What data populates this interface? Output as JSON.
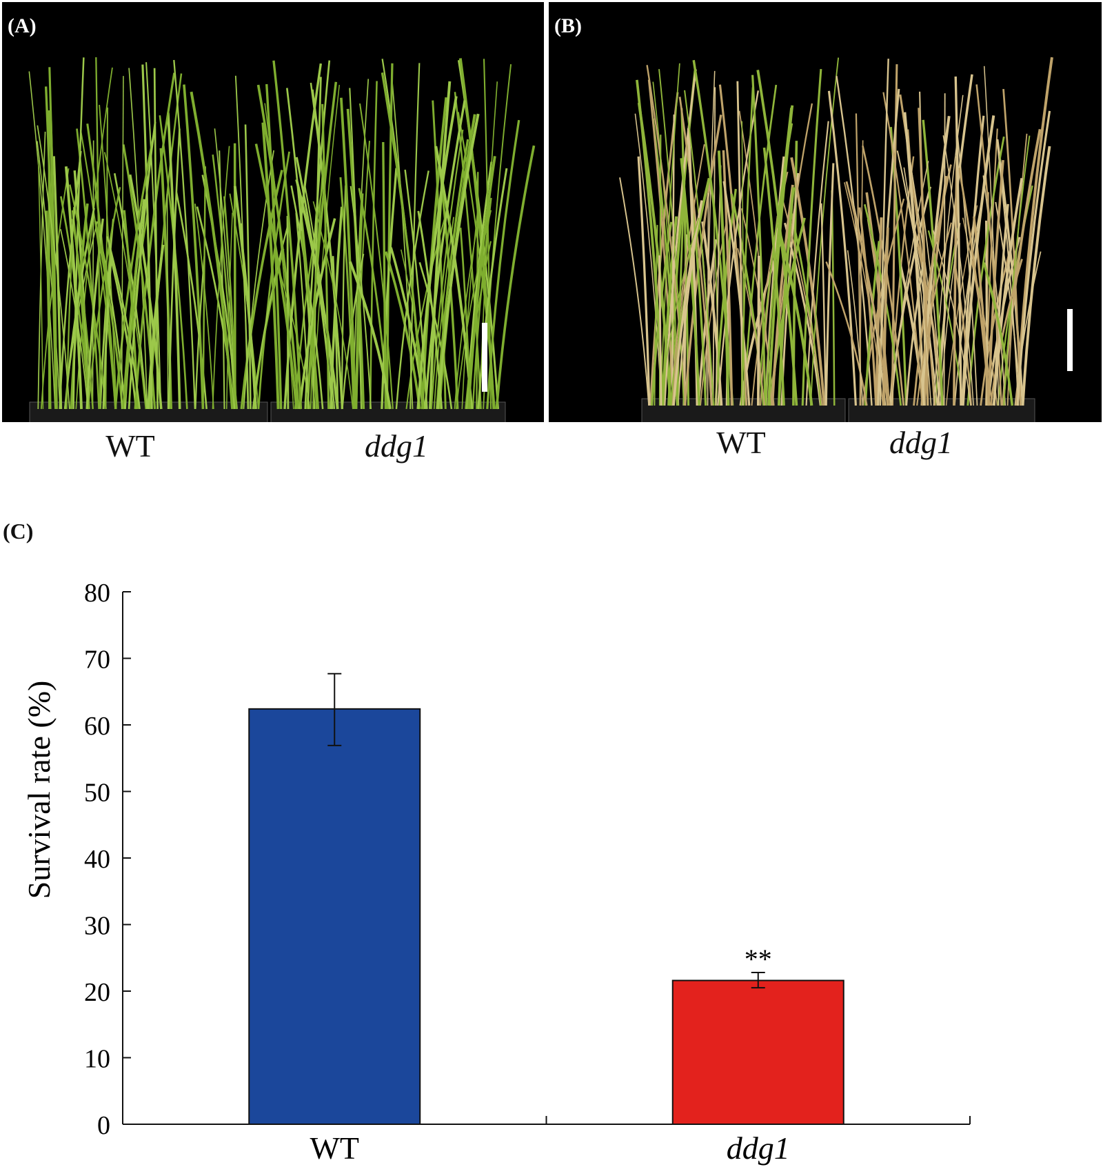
{
  "panels": [
    {
      "label": "(A)",
      "captions": [
        "WT",
        "ddg1"
      ],
      "leaf_color": "#8fbf3a",
      "scale_bar": true
    },
    {
      "label": "(B)",
      "captions": [
        "WT",
        "ddg1"
      ],
      "leaf_color": "#c9b27a",
      "scale_bar": true
    }
  ],
  "chart_panel_label": "(C)",
  "chart_data": {
    "type": "bar",
    "categories": [
      "WT",
      "ddg1"
    ],
    "values": [
      62.4,
      21.6
    ],
    "error_low": [
      56.9,
      20.5
    ],
    "error_high": [
      67.7,
      22.8
    ],
    "colors": [
      "#1b479b",
      "#e3221d"
    ],
    "annotations": [
      "",
      "**"
    ],
    "title": "",
    "xlabel": "",
    "ylabel": "Survival rate (%)",
    "ylim": [
      0,
      80
    ],
    "yticks": [
      0,
      10,
      20,
      30,
      40,
      50,
      60,
      70,
      80
    ],
    "grid": false
  }
}
